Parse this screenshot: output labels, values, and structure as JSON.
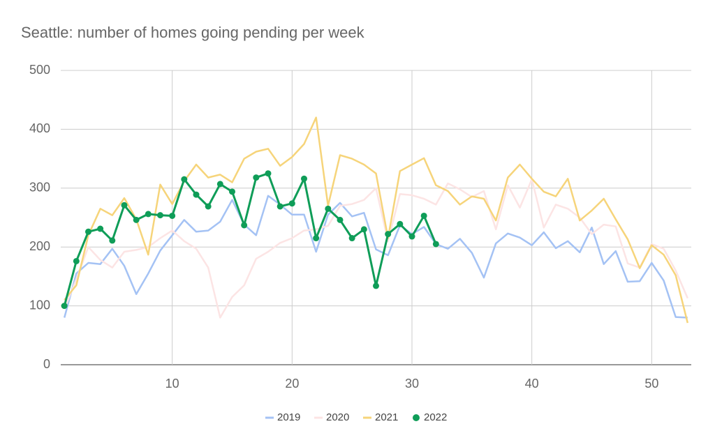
{
  "chart_data": {
    "type": "line",
    "title": "Seattle: number of homes going pending per week",
    "x": [
      1,
      2,
      3,
      4,
      5,
      6,
      7,
      8,
      9,
      10,
      11,
      12,
      13,
      14,
      15,
      16,
      17,
      18,
      19,
      20,
      21,
      22,
      23,
      24,
      25,
      26,
      27,
      28,
      29,
      30,
      31,
      32,
      33,
      34,
      35,
      36,
      37,
      38,
      39,
      40,
      41,
      42,
      43,
      44,
      45,
      46,
      47,
      48,
      49,
      50,
      51,
      52,
      53
    ],
    "series": [
      {
        "name": "2019",
        "color": "#a4c2f4",
        "markers": false,
        "values": [
          80,
          155,
          173,
          171,
          197,
          168,
          120,
          155,
          194,
          220,
          246,
          226,
          228,
          243,
          280,
          238,
          220,
          287,
          272,
          255,
          255,
          192,
          255,
          275,
          252,
          258,
          196,
          186,
          237,
          222,
          234,
          205,
          197,
          214,
          190,
          148,
          206,
          223,
          216,
          203,
          225,
          198,
          210,
          191,
          233,
          171,
          193,
          141,
          142,
          173,
          143,
          81,
          80
        ]
      },
      {
        "name": "2020",
        "color": "#fce4e4",
        "markers": false,
        "values": [
          95,
          145,
          200,
          178,
          165,
          192,
          195,
          200,
          215,
          228,
          210,
          197,
          165,
          80,
          115,
          135,
          180,
          192,
          207,
          215,
          228,
          230,
          236,
          270,
          273,
          280,
          300,
          210,
          290,
          288,
          282,
          272,
          308,
          298,
          285,
          295,
          230,
          305,
          267,
          315,
          233,
          272,
          265,
          250,
          222,
          238,
          235,
          172,
          165,
          205,
          197,
          160,
          113
        ]
      },
      {
        "name": "2021",
        "color": "#f6d47a",
        "markers": false,
        "values": [
          110,
          135,
          220,
          265,
          254,
          283,
          247,
          187,
          306,
          273,
          312,
          340,
          318,
          323,
          310,
          350,
          362,
          367,
          338,
          353,
          375,
          420,
          270,
          356,
          350,
          340,
          325,
          215,
          329,
          340,
          351,
          305,
          295,
          272,
          286,
          282,
          245,
          318,
          340,
          316,
          294,
          286,
          316,
          245,
          262,
          282,
          247,
          213,
          164,
          203,
          187,
          152,
          71
        ]
      },
      {
        "name": "2022",
        "color": "#0f9d58",
        "markers": true,
        "values": [
          100,
          176,
          226,
          231,
          211,
          271,
          246,
          256,
          254,
          253,
          315,
          289,
          269,
          307,
          294,
          237,
          318,
          325,
          269,
          274,
          316,
          215,
          265,
          246,
          215,
          230,
          134,
          222,
          239,
          218,
          253,
          205,
          null,
          null,
          null,
          null,
          null,
          null,
          null,
          null,
          null,
          null,
          null,
          null,
          null,
          null,
          null,
          null,
          null,
          null,
          null,
          null,
          null
        ]
      }
    ],
    "xlim": [
      0.7,
      53.3
    ],
    "ylim": [
      0,
      500
    ],
    "xticks": [
      10,
      20,
      30,
      40,
      50
    ],
    "yticks": [
      0,
      100,
      200,
      300,
      400,
      500
    ],
    "grid": true,
    "legend": "bottom"
  }
}
